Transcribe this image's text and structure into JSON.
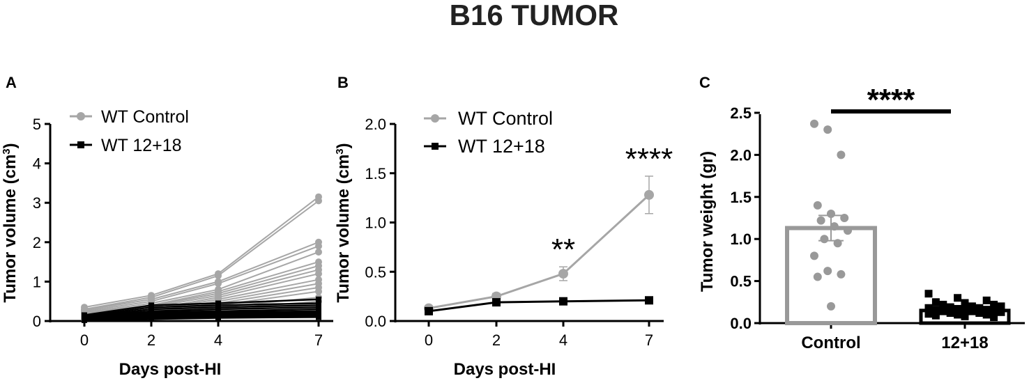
{
  "figure_title": "B16 TUMOR",
  "chart_data": [
    {
      "panel": "A",
      "type": "line",
      "ylabel": "Tumor volume (cm",
      "ylabel_sup": "3",
      "ylabel_close": ")",
      "xlabel": "Days post-HI",
      "x": [
        0,
        2,
        4,
        7
      ],
      "xticks": [
        "0",
        "2",
        "4",
        "7"
      ],
      "ylim": [
        0,
        5
      ],
      "yticks": [
        "0",
        "1",
        "2",
        "3",
        "4",
        "5"
      ],
      "legend": [
        "WT Control",
        "WT 12+18"
      ],
      "legend_position": "top-left",
      "colors": {
        "control": "#a6a6a6",
        "treated": "#000000"
      },
      "series": [
        {
          "name": "WT Control",
          "group": "control",
          "values": [
            0.35,
            0.65,
            1.2,
            3.15
          ]
        },
        {
          "name": "WT Control",
          "group": "control",
          "values": [
            0.3,
            0.6,
            1.15,
            3.05
          ]
        },
        {
          "name": "WT Control",
          "group": "control",
          "values": [
            0.28,
            0.55,
            1.0,
            2.0
          ]
        },
        {
          "name": "WT Control",
          "group": "control",
          "values": [
            0.25,
            0.5,
            0.95,
            1.9
          ]
        },
        {
          "name": "WT Control",
          "group": "control",
          "values": [
            0.22,
            0.45,
            0.8,
            1.75
          ]
        },
        {
          "name": "WT Control",
          "group": "control",
          "values": [
            0.2,
            0.4,
            0.75,
            1.5
          ]
        },
        {
          "name": "WT Control",
          "group": "control",
          "values": [
            0.18,
            0.38,
            0.7,
            1.4
          ]
        },
        {
          "name": "WT Control",
          "group": "control",
          "values": [
            0.15,
            0.35,
            0.65,
            1.3
          ]
        },
        {
          "name": "WT Control",
          "group": "control",
          "values": [
            0.12,
            0.3,
            0.6,
            1.2
          ]
        },
        {
          "name": "WT Control",
          "group": "control",
          "values": [
            0.1,
            0.28,
            0.55,
            1.05
          ]
        },
        {
          "name": "WT Control",
          "group": "control",
          "values": [
            0.1,
            0.25,
            0.5,
            0.95
          ]
        },
        {
          "name": "WT Control",
          "group": "control",
          "values": [
            0.08,
            0.22,
            0.45,
            0.85
          ]
        },
        {
          "name": "WT Control",
          "group": "control",
          "values": [
            0.07,
            0.2,
            0.4,
            0.75
          ]
        },
        {
          "name": "WT Control",
          "group": "control",
          "values": [
            0.06,
            0.18,
            0.35,
            0.6
          ]
        },
        {
          "name": "WT Control",
          "group": "control",
          "values": [
            0.05,
            0.15,
            0.3,
            0.5
          ]
        },
        {
          "name": "WT 12+18",
          "group": "treated",
          "values": [
            0.15,
            0.4,
            0.45,
            0.55
          ]
        },
        {
          "name": "WT 12+18",
          "group": "treated",
          "values": [
            0.12,
            0.35,
            0.4,
            0.45
          ]
        },
        {
          "name": "WT 12+18",
          "group": "treated",
          "values": [
            0.1,
            0.3,
            0.35,
            0.4
          ]
        },
        {
          "name": "WT 12+18",
          "group": "treated",
          "values": [
            0.1,
            0.25,
            0.3,
            0.35
          ]
        },
        {
          "name": "WT 12+18",
          "group": "treated",
          "values": [
            0.08,
            0.22,
            0.25,
            0.3
          ]
        },
        {
          "name": "WT 12+18",
          "group": "treated",
          "values": [
            0.07,
            0.2,
            0.22,
            0.25
          ]
        },
        {
          "name": "WT 12+18",
          "group": "treated",
          "values": [
            0.06,
            0.18,
            0.2,
            0.22
          ]
        },
        {
          "name": "WT 12+18",
          "group": "treated",
          "values": [
            0.05,
            0.15,
            0.18,
            0.2
          ]
        },
        {
          "name": "WT 12+18",
          "group": "treated",
          "values": [
            0.05,
            0.12,
            0.15,
            0.18
          ]
        },
        {
          "name": "WT 12+18",
          "group": "treated",
          "values": [
            0.04,
            0.1,
            0.12,
            0.15
          ]
        },
        {
          "name": "WT 12+18",
          "group": "treated",
          "values": [
            0.03,
            0.08,
            0.1,
            0.12
          ]
        },
        {
          "name": "WT 12+18",
          "group": "treated",
          "values": [
            0.02,
            0.05,
            0.08,
            0.1
          ]
        }
      ]
    },
    {
      "panel": "B",
      "type": "line",
      "ylabel": "Tumor volume (cm",
      "ylabel_sup": "3",
      "ylabel_close": ")",
      "xlabel": "Days post-HI",
      "x": [
        0,
        2,
        4,
        7
      ],
      "xticks": [
        "0",
        "2",
        "4",
        "7"
      ],
      "ylim": [
        0,
        2.0
      ],
      "yticks": [
        "0.0",
        "0.5",
        "1.0",
        "1.5",
        "2.0"
      ],
      "legend_position": "top-left",
      "series": [
        {
          "name": "WT Control",
          "color": "#a6a6a6",
          "marker": "circle",
          "values": [
            0.13,
            0.25,
            0.48,
            1.28
          ],
          "errors": [
            0.02,
            0.03,
            0.07,
            0.19
          ]
        },
        {
          "name": "WT 12+18",
          "color": "#000000",
          "marker": "square",
          "values": [
            0.1,
            0.19,
            0.2,
            0.21
          ],
          "errors": [
            0.01,
            0.02,
            0.02,
            0.02
          ]
        }
      ],
      "annotations": [
        {
          "x": 4,
          "text": "**"
        },
        {
          "x": 7,
          "text": "****"
        }
      ]
    },
    {
      "panel": "C",
      "type": "bar",
      "ylabel": "Tumor weight (gr)",
      "categories": [
        "Control",
        "12+18"
      ],
      "ylim": [
        0,
        2.5
      ],
      "yticks": [
        "0.0",
        "0.5",
        "1.0",
        "1.5",
        "2.0",
        "2.5"
      ],
      "bars": [
        {
          "category": "Control",
          "mean": 1.13,
          "sem": 0.15,
          "color": "#999999",
          "points": [
            2.37,
            2.3,
            2.0,
            1.4,
            1.3,
            1.25,
            1.22,
            1.15,
            1.1,
            1.0,
            0.95,
            0.8,
            0.62,
            0.58,
            0.55,
            0.2
          ]
        },
        {
          "category": "12+18",
          "mean": 0.15,
          "sem": 0.02,
          "color": "#000000",
          "points": [
            0.35,
            0.3,
            0.27,
            0.25,
            0.24,
            0.22,
            0.22,
            0.2,
            0.2,
            0.19,
            0.18,
            0.18,
            0.17,
            0.16,
            0.16,
            0.15,
            0.15,
            0.14,
            0.14,
            0.13,
            0.12,
            0.12,
            0.11,
            0.1,
            0.1,
            0.09,
            0.08,
            0.07
          ]
        }
      ],
      "significance": "****"
    }
  ]
}
